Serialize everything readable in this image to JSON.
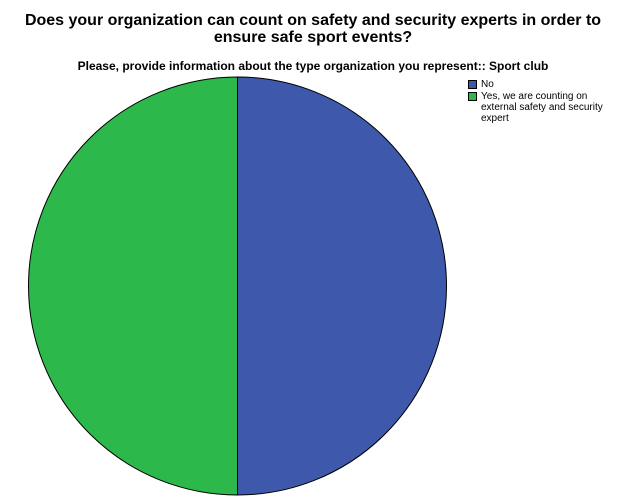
{
  "chart_data": {
    "type": "pie",
    "title": "Does your organization can count on safety and security experts in order to ensure safe sport events?",
    "subtitle": "Please, provide information about the type organization you represent:: Sport club",
    "legend_position": "top-right",
    "slices": [
      {
        "label": "No",
        "value": 50,
        "color": "#3E58AC"
      },
      {
        "label": "Yes, we are counting on external safety and security expert",
        "value": 50,
        "color": "#2DB84B"
      }
    ]
  }
}
